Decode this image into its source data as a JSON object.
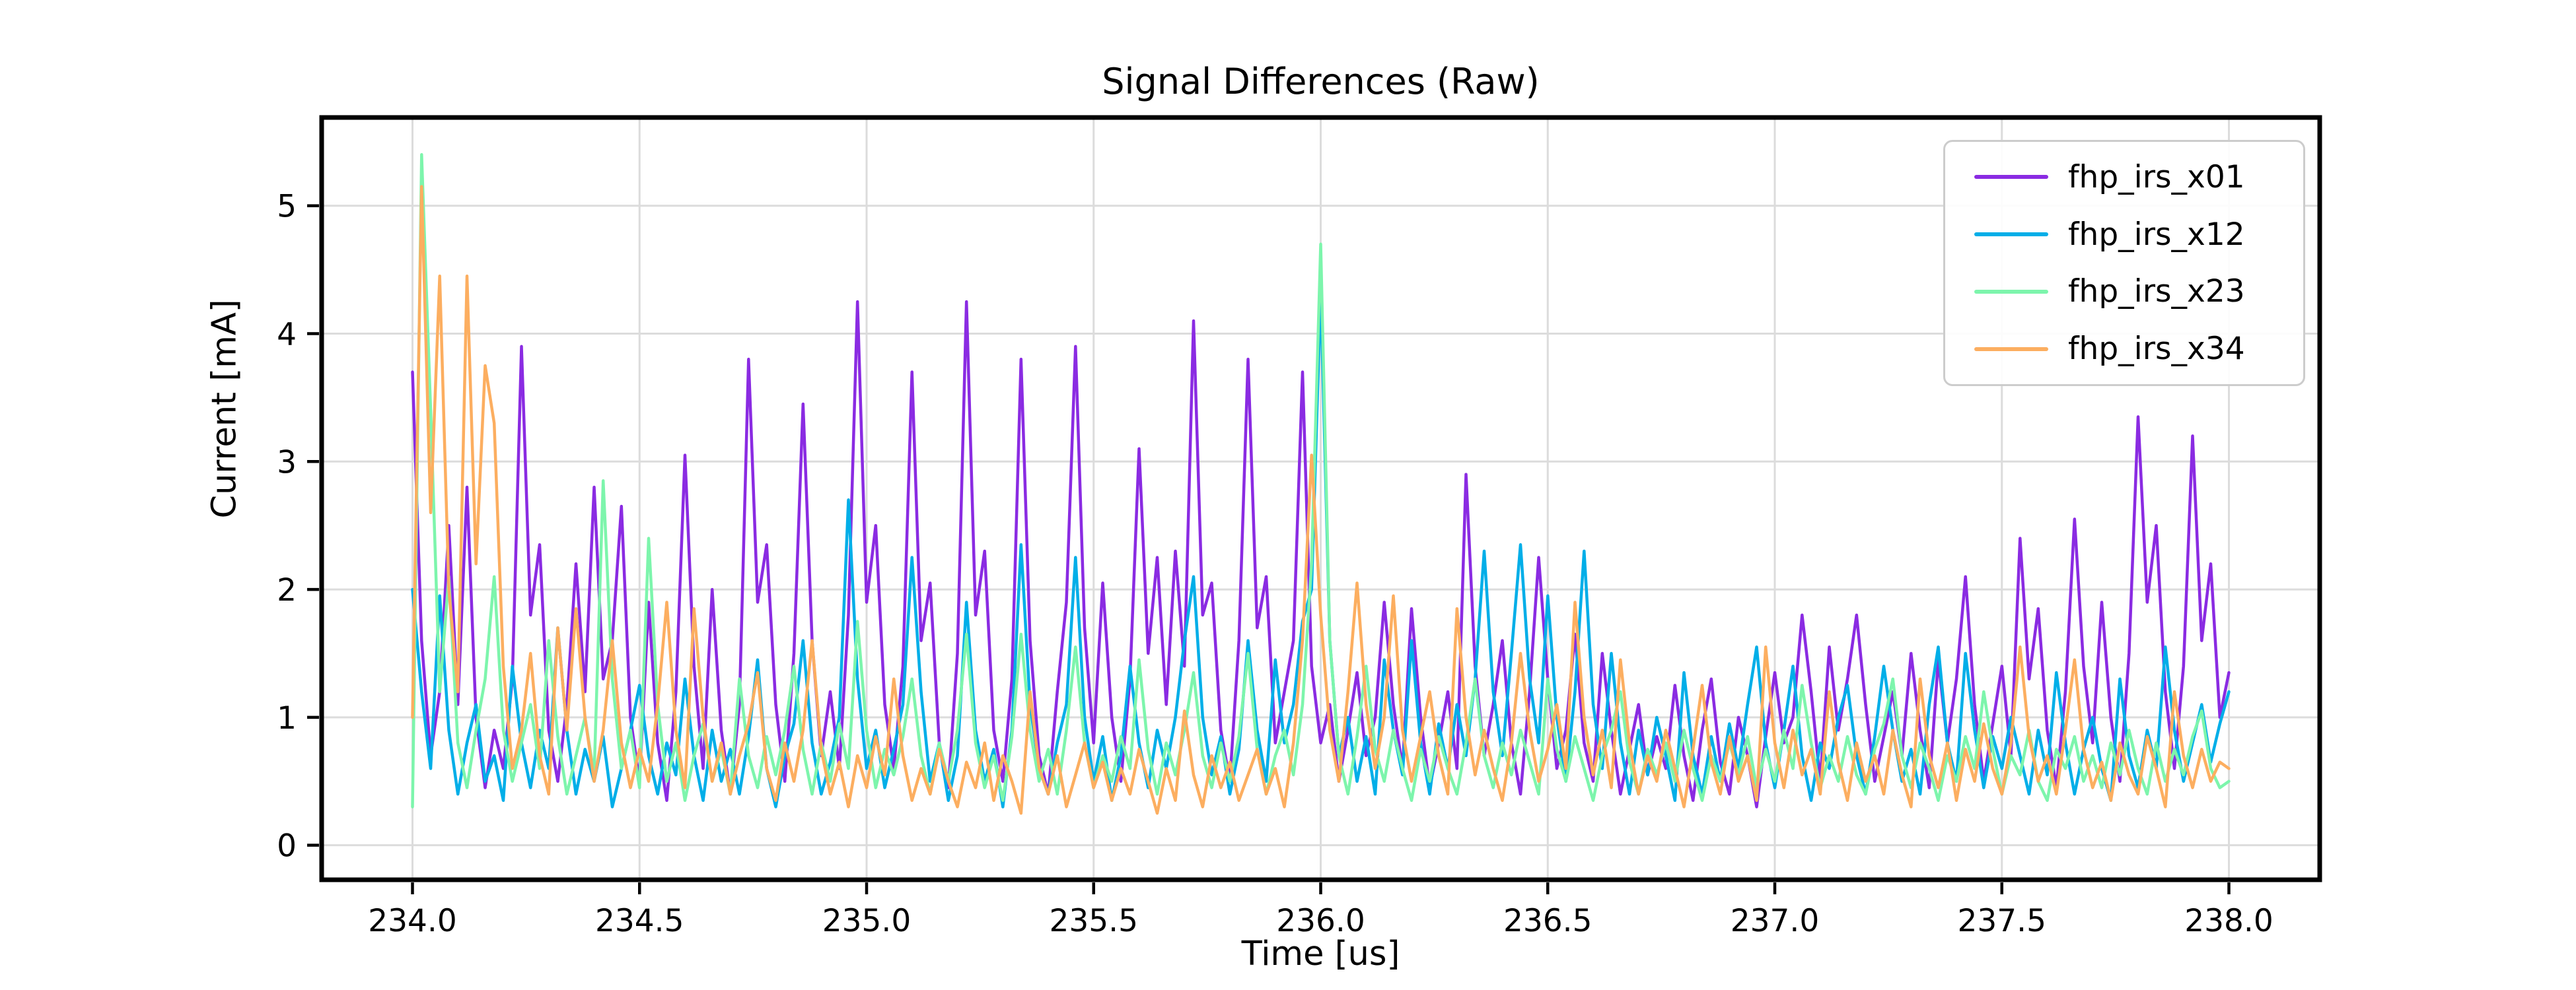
{
  "chart_data": {
    "type": "line",
    "title": "Signal Differences (Raw)",
    "xlabel": "Time [us]",
    "ylabel": "Current [mA]",
    "xlim": [
      233.8,
      238.2
    ],
    "ylim": [
      -0.27,
      5.69
    ],
    "x_ticks": [
      234.0,
      234.5,
      235.0,
      235.5,
      236.0,
      236.5,
      237.0,
      237.5,
      238.0
    ],
    "x_tick_labels": [
      "234.0",
      "234.5",
      "235.0",
      "235.5",
      "236.0",
      "236.5",
      "237.0",
      "237.5",
      "238.0"
    ],
    "y_ticks": [
      0,
      1,
      2,
      3,
      4,
      5
    ],
    "y_tick_labels": [
      "0",
      "1",
      "2",
      "3",
      "4",
      "5"
    ],
    "grid": true,
    "grid_color": "#dcdcdc",
    "background_color": "#ffffff",
    "spine_color": "#000000",
    "legend_position": "upper right",
    "x_start": 234.0,
    "x_step": 0.02,
    "series": [
      {
        "name": "fhp_irs_x01",
        "color": "#8A2BE2",
        "values": [
          3.7,
          1.6,
          0.7,
          1.2,
          2.5,
          1.1,
          2.8,
          1.0,
          0.45,
          0.9,
          0.6,
          1.3,
          3.9,
          1.8,
          2.35,
          0.9,
          0.5,
          1.1,
          2.2,
          1.2,
          2.8,
          1.3,
          1.6,
          2.65,
          1.0,
          0.5,
          1.9,
          0.8,
          0.35,
          1.2,
          3.05,
          1.4,
          0.6,
          2.0,
          0.9,
          0.4,
          1.1,
          3.8,
          1.9,
          2.35,
          1.1,
          0.5,
          1.5,
          3.45,
          1.6,
          0.7,
          1.2,
          0.6,
          1.8,
          4.25,
          1.9,
          2.5,
          1.1,
          0.6,
          1.4,
          3.7,
          1.6,
          2.05,
          0.8,
          0.45,
          1.5,
          4.25,
          1.8,
          2.3,
          0.9,
          0.5,
          1.3,
          3.8,
          1.6,
          0.7,
          0.4,
          1.2,
          1.9,
          3.9,
          1.7,
          0.8,
          2.05,
          1.0,
          0.5,
          1.3,
          3.1,
          1.5,
          2.25,
          1.1,
          2.3,
          1.4,
          4.1,
          1.8,
          2.05,
          0.9,
          0.5,
          1.6,
          3.8,
          1.7,
          2.1,
          0.8,
          1.2,
          1.6,
          3.7,
          1.4,
          0.8,
          1.1,
          0.5,
          0.9,
          1.35,
          0.7,
          1.0,
          1.9,
          1.1,
          0.6,
          1.85,
          1.0,
          0.45,
          0.8,
          1.2,
          0.6,
          2.9,
          1.4,
          0.7,
          1.1,
          1.6,
          0.8,
          0.4,
          1.2,
          2.25,
          1.3,
          0.6,
          0.9,
          1.65,
          0.8,
          0.5,
          1.5,
          0.9,
          0.4,
          0.75,
          1.1,
          0.55,
          0.85,
          0.6,
          1.25,
          0.7,
          0.35,
          0.9,
          1.3,
          0.65,
          0.4,
          1.0,
          0.7,
          0.3,
          0.85,
          1.35,
          0.8,
          1.0,
          1.8,
          1.2,
          0.5,
          1.55,
          0.9,
          1.3,
          1.8,
          1.1,
          0.5,
          0.85,
          1.2,
          0.7,
          1.5,
          0.9,
          0.45,
          1.45,
          0.8,
          1.3,
          2.1,
          1.1,
          0.5,
          0.95,
          1.4,
          0.7,
          2.4,
          1.3,
          1.85,
          0.9,
          0.45,
          1.2,
          2.55,
          1.4,
          0.8,
          1.9,
          1.0,
          0.5,
          1.5,
          3.35,
          1.9,
          2.5,
          1.2,
          0.6,
          1.4,
          3.2,
          1.6,
          2.2,
          1.0,
          1.35
        ]
      },
      {
        "name": "fhp_irs_x12",
        "color": "#00AEE8",
        "values": [
          2.0,
          1.2,
          0.6,
          1.95,
          0.9,
          0.4,
          0.8,
          1.1,
          0.5,
          0.7,
          0.35,
          1.4,
          0.8,
          0.45,
          0.9,
          0.6,
          1.7,
          0.9,
          0.4,
          0.75,
          0.5,
          0.85,
          0.3,
          0.6,
          0.9,
          1.25,
          0.7,
          0.4,
          0.8,
          0.55,
          1.3,
          0.7,
          0.35,
          0.9,
          0.5,
          0.75,
          0.4,
          0.85,
          1.45,
          0.6,
          0.3,
          0.7,
          0.95,
          1.6,
          0.8,
          0.4,
          0.65,
          1.0,
          2.7,
          1.3,
          0.6,
          0.9,
          0.45,
          0.75,
          1.1,
          2.25,
          1.2,
          0.5,
          0.8,
          0.35,
          0.7,
          1.9,
          0.9,
          0.5,
          0.75,
          0.3,
          0.9,
          2.35,
          1.1,
          0.6,
          0.4,
          0.8,
          1.1,
          2.25,
          1.0,
          0.5,
          0.85,
          0.35,
          0.7,
          1.4,
          0.8,
          0.45,
          0.9,
          0.6,
          1.0,
          1.6,
          2.1,
          1.0,
          0.55,
          0.85,
          0.4,
          0.75,
          1.6,
          0.9,
          0.5,
          1.45,
          0.8,
          1.1,
          1.75,
          2.0,
          4.35,
          1.6,
          0.7,
          1.0,
          0.5,
          0.85,
          0.4,
          1.45,
          0.9,
          0.55,
          1.6,
          0.8,
          0.4,
          0.95,
          0.6,
          1.1,
          0.7,
          1.3,
          2.3,
          1.2,
          0.7,
          1.5,
          2.35,
          1.3,
          0.8,
          1.95,
          1.0,
          0.5,
          1.2,
          2.3,
          1.1,
          0.6,
          1.5,
          0.8,
          0.4,
          0.9,
          0.55,
          1.0,
          0.7,
          0.35,
          1.35,
          0.7,
          0.4,
          0.85,
          0.5,
          0.95,
          0.6,
          1.1,
          1.55,
          0.8,
          0.45,
          0.9,
          1.4,
          0.7,
          0.35,
          0.8,
          0.6,
          1.0,
          1.25,
          0.7,
          0.4,
          0.85,
          1.4,
          0.9,
          0.5,
          0.75,
          0.4,
          1.1,
          1.55,
          0.8,
          0.5,
          1.5,
          0.9,
          0.45,
          0.85,
          0.6,
          1.0,
          0.7,
          0.4,
          0.9,
          0.55,
          1.35,
          0.8,
          0.4,
          0.75,
          1.0,
          0.6,
          0.35,
          1.3,
          0.7,
          0.45,
          0.9,
          0.6,
          1.55,
          0.9,
          0.5,
          0.8,
          1.1,
          0.65,
          0.95,
          1.2
        ]
      },
      {
        "name": "fhp_irs_x23",
        "color": "#7DF5AC",
        "values": [
          0.3,
          5.4,
          3.4,
          1.2,
          2.1,
          0.8,
          0.45,
          0.9,
          1.3,
          2.1,
          0.9,
          0.5,
          0.8,
          1.1,
          0.6,
          1.6,
          0.85,
          0.4,
          0.7,
          1.0,
          0.55,
          2.85,
          1.3,
          0.6,
          0.9,
          0.45,
          2.4,
          1.1,
          0.5,
          0.8,
          0.35,
          0.7,
          0.95,
          0.5,
          0.75,
          0.4,
          1.3,
          0.7,
          0.45,
          0.85,
          0.55,
          0.9,
          1.4,
          0.75,
          0.4,
          0.8,
          0.5,
          0.95,
          0.6,
          1.75,
          0.9,
          0.45,
          0.75,
          0.55,
          0.85,
          1.3,
          0.7,
          0.4,
          0.8,
          0.5,
          0.9,
          1.65,
          0.8,
          0.45,
          0.7,
          0.35,
          0.85,
          1.65,
          0.9,
          0.5,
          0.75,
          0.4,
          0.9,
          1.55,
          0.8,
          0.45,
          0.7,
          0.5,
          0.85,
          0.6,
          1.45,
          0.75,
          0.4,
          0.8,
          0.55,
          0.9,
          1.35,
          0.7,
          0.45,
          0.8,
          0.5,
          0.85,
          1.5,
          0.75,
          0.4,
          0.7,
          0.9,
          0.55,
          1.1,
          2.2,
          4.7,
          1.6,
          0.7,
          0.4,
          0.85,
          1.4,
          0.75,
          0.5,
          0.9,
          0.6,
          0.35,
          0.75,
          0.5,
          0.85,
          0.6,
          0.4,
          0.8,
          1.3,
          0.7,
          0.45,
          0.8,
          0.55,
          0.9,
          0.65,
          0.4,
          1.3,
          0.75,
          0.5,
          0.85,
          0.6,
          0.35,
          0.7,
          0.9,
          1.2,
          0.65,
          0.4,
          0.75,
          0.55,
          0.8,
          0.5,
          0.9,
          0.6,
          0.35,
          0.7,
          0.5,
          0.8,
          0.55,
          0.85,
          0.45,
          0.75,
          0.5,
          0.9,
          0.6,
          1.25,
          0.8,
          0.45,
          0.7,
          0.5,
          0.85,
          0.55,
          0.4,
          0.75,
          0.95,
          1.3,
          0.7,
          0.45,
          0.8,
          0.6,
          0.35,
          0.7,
          0.5,
          0.85,
          0.6,
          1.2,
          0.75,
          0.4,
          0.7,
          0.55,
          0.9,
          0.5,
          0.35,
          0.75,
          0.6,
          0.85,
          0.5,
          0.7,
          0.45,
          0.8,
          0.55,
          0.9,
          0.6,
          0.4,
          0.8,
          0.5,
          0.75,
          0.55,
          0.85,
          1.05,
          0.6,
          0.45,
          0.5
        ]
      },
      {
        "name": "fhp_irs_x34",
        "color": "#FCAE60",
        "values": [
          1.0,
          5.15,
          2.6,
          4.45,
          2.0,
          1.2,
          4.45,
          2.2,
          3.75,
          3.3,
          1.4,
          0.6,
          0.9,
          1.5,
          0.7,
          0.4,
          1.7,
          0.9,
          1.85,
          1.0,
          0.5,
          0.9,
          1.6,
          0.8,
          0.45,
          0.75,
          0.5,
          1.1,
          1.9,
          0.9,
          0.45,
          1.85,
          1.0,
          0.5,
          0.8,
          0.4,
          0.7,
          0.95,
          1.35,
          0.6,
          0.35,
          0.8,
          0.5,
          0.9,
          1.6,
          0.75,
          0.4,
          0.65,
          0.3,
          0.7,
          0.45,
          0.85,
          0.55,
          1.3,
          0.7,
          0.35,
          0.6,
          0.4,
          0.75,
          0.5,
          0.3,
          0.65,
          0.45,
          0.8,
          0.35,
          0.7,
          0.5,
          0.25,
          1.2,
          0.6,
          0.4,
          0.7,
          0.3,
          0.55,
          0.8,
          0.45,
          0.65,
          0.35,
          0.6,
          0.4,
          0.75,
          0.5,
          0.25,
          0.6,
          0.35,
          1.05,
          0.55,
          0.3,
          0.7,
          0.45,
          0.65,
          0.35,
          0.55,
          0.75,
          0.4,
          0.6,
          0.3,
          0.8,
          1.6,
          3.05,
          1.8,
          0.9,
          0.5,
          1.2,
          2.05,
          1.1,
          0.6,
          1.0,
          1.95,
          0.9,
          0.5,
          0.85,
          1.2,
          0.7,
          0.4,
          1.85,
          1.0,
          0.55,
          0.9,
          0.6,
          0.35,
          0.8,
          1.5,
          0.9,
          0.5,
          0.75,
          1.1,
          0.6,
          1.9,
          1.0,
          0.55,
          0.9,
          0.45,
          1.45,
          0.8,
          0.4,
          0.7,
          0.5,
          0.9,
          0.6,
          0.3,
          0.75,
          1.25,
          0.65,
          0.4,
          0.85,
          0.5,
          0.7,
          0.35,
          1.55,
          0.8,
          0.45,
          0.9,
          0.55,
          0.75,
          0.4,
          1.2,
          0.65,
          0.35,
          0.8,
          0.5,
          0.7,
          0.4,
          0.9,
          0.55,
          0.3,
          1.3,
          0.7,
          0.45,
          0.8,
          0.35,
          0.75,
          0.5,
          0.95,
          0.6,
          0.4,
          0.8,
          1.55,
          0.85,
          0.5,
          0.7,
          0.4,
          0.9,
          1.45,
          0.75,
          0.45,
          0.65,
          0.35,
          0.8,
          0.55,
          0.4,
          0.85,
          0.6,
          0.3,
          1.2,
          0.7,
          0.45,
          0.75,
          0.5,
          0.65,
          0.6
        ]
      }
    ]
  }
}
